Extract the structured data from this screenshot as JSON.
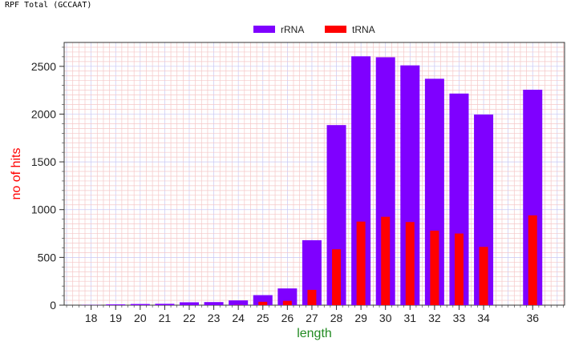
{
  "header": {
    "title": "RPF Total (GCCAAT)"
  },
  "colors": {
    "rRNA": "#7f00ff",
    "tRNA": "#ff0000",
    "xlabel": "#228b22",
    "ylabel": "#ff0000",
    "grid_blue": "#c7c7f5",
    "grid_red": "#f5c7c7"
  },
  "chart_data": {
    "type": "bar",
    "xlabel": "length",
    "ylabel": "no of hits",
    "ylim": [
      0,
      2750
    ],
    "xlim": [
      16.9,
      37.3
    ],
    "yticks": [
      0,
      500,
      1000,
      1500,
      2000,
      2500
    ],
    "grid": true,
    "legend": "top-center",
    "categories": [
      18,
      19,
      20,
      21,
      22,
      23,
      24,
      25,
      26,
      27,
      28,
      29,
      30,
      31,
      32,
      33,
      34,
      36
    ],
    "series": [
      {
        "name": "rRNA",
        "values": [
          2,
          8,
          12,
          14,
          30,
          32,
          50,
          105,
          175,
          680,
          1885,
          2605,
          2595,
          2510,
          2370,
          2215,
          1995,
          2255
        ]
      },
      {
        "name": "tRNA",
        "values": [
          0,
          0,
          0,
          0,
          0,
          0,
          2,
          35,
          45,
          160,
          585,
          875,
          925,
          870,
          780,
          750,
          610,
          940
        ]
      }
    ]
  }
}
